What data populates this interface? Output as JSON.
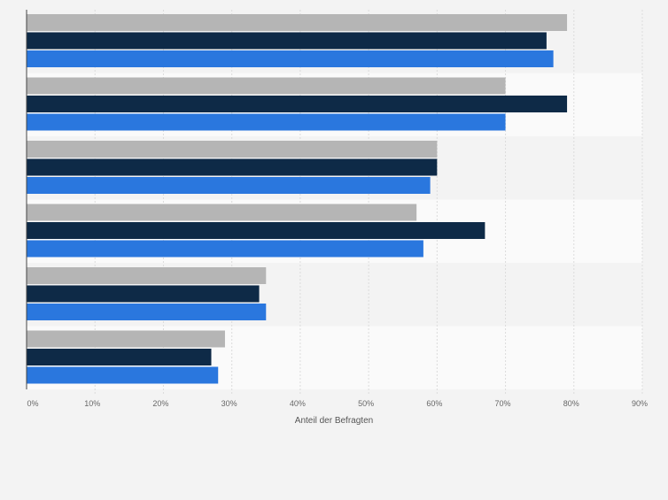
{
  "chart_data": {
    "type": "bar",
    "orientation": "horizontal",
    "categories": [
      "",
      "",
      "",
      "",
      "",
      ""
    ],
    "series": [
      {
        "color": "#b5b5b5",
        "values": [
          79,
          70,
          60,
          57,
          35,
          29
        ]
      },
      {
        "color": "#0e2a47",
        "values": [
          76,
          79,
          60,
          67,
          34,
          27
        ]
      },
      {
        "color": "#2a77de",
        "values": [
          77,
          70,
          59,
          58,
          35,
          28
        ]
      }
    ],
    "xlim": [
      0,
      90
    ],
    "xticks": [
      "0%",
      "10%",
      "20%",
      "30%",
      "40%",
      "50%",
      "60%",
      "70%",
      "80%",
      "90%"
    ],
    "xlabel": "Anteil der Befragten",
    "ylabel": "",
    "title": "",
    "grid": true,
    "legend": "none"
  }
}
